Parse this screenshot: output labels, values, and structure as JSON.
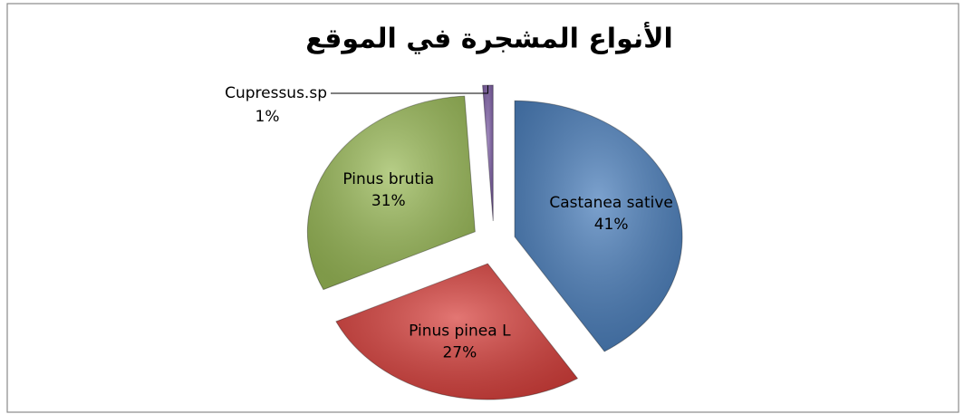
{
  "chart_data": {
    "type": "pie",
    "title": "الأنواع المشجرة في الموقع",
    "categories": [
      "Castanea sative",
      "Pinus pinea L",
      "Pinus brutia",
      "Cupressus.sp"
    ],
    "values": [
      41,
      27,
      31,
      1
    ],
    "value_labels": [
      "41%",
      "27%",
      "31%",
      "1%"
    ],
    "colors": [
      "#4a7ebb",
      "#d8413d",
      "#9bbb59",
      "#7e5fa6"
    ]
  }
}
